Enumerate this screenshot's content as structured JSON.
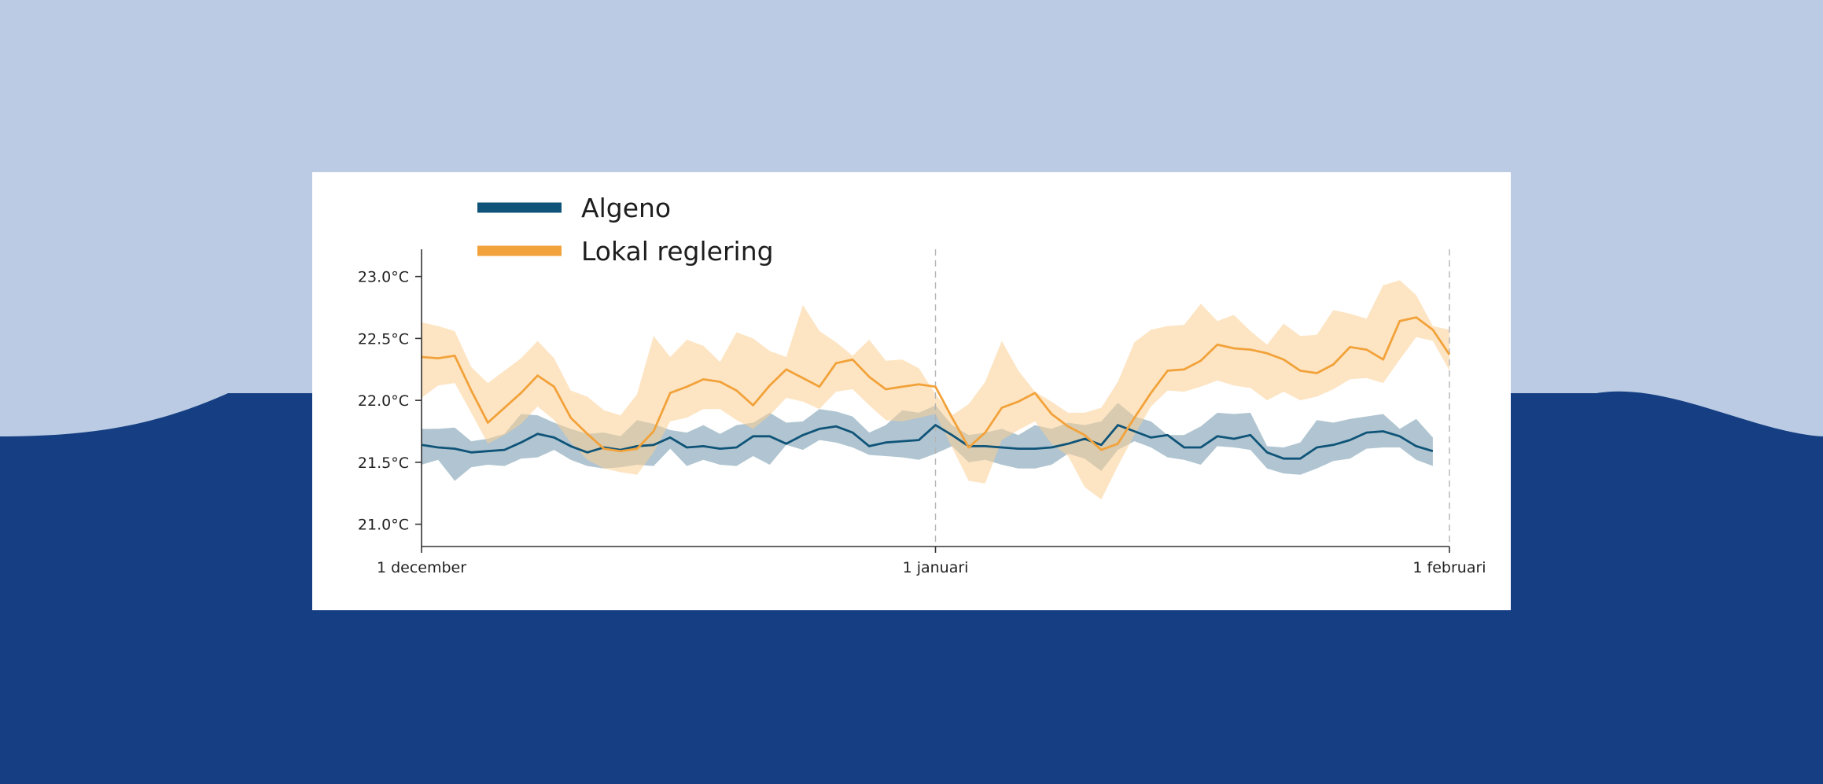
{
  "colors": {
    "background_light": "#bacbe3",
    "background_dark": "#153f82",
    "algeno": "#0f5478",
    "algeno_band": "#6f95ab",
    "lokal": "#f2a23a",
    "lokal_band": "#fbcf94"
  },
  "chart_data": {
    "type": "line",
    "title": "",
    "xlabel": "",
    "ylabel": "",
    "x_unit": "days since 1 december",
    "xlim": [
      0,
      62
    ],
    "ylim": [
      20.82,
      23.22
    ],
    "yticks": [
      {
        "value": 23.0,
        "label": "23.0°C"
      },
      {
        "value": 22.5,
        "label": "22.5°C"
      },
      {
        "value": 22.0,
        "label": "22.0°C"
      },
      {
        "value": 21.5,
        "label": "21.5°C"
      },
      {
        "value": 21.0,
        "label": "21.0°C"
      }
    ],
    "xticks": [
      {
        "value": 0,
        "label": "1 december"
      },
      {
        "value": 31,
        "label": "1 januari"
      },
      {
        "value": 62,
        "label": "1 februari"
      }
    ],
    "vlines": [
      31,
      62
    ],
    "legend_position": "top-left",
    "series": [
      {
        "name": "Algeno",
        "color": "#0f5478",
        "band_color": "#6f95ab",
        "values": [
          21.64,
          21.62,
          21.61,
          21.58,
          21.59,
          21.6,
          21.66,
          21.73,
          21.7,
          21.63,
          21.58,
          21.62,
          21.6,
          21.63,
          21.64,
          21.7,
          21.62,
          21.63,
          21.61,
          21.62,
          21.71,
          21.71,
          21.65,
          21.72,
          21.77,
          21.79,
          21.74,
          21.63,
          21.66,
          21.67,
          21.68,
          21.8,
          21.72,
          21.63,
          21.63,
          21.62,
          21.61,
          21.61,
          21.62,
          21.65,
          21.69,
          21.64,
          21.8,
          21.75,
          21.7,
          21.72,
          21.62,
          21.62,
          21.71,
          21.69,
          21.72,
          21.58,
          21.53,
          21.53,
          21.62,
          21.64,
          21.68,
          21.74,
          21.75,
          21.71,
          21.63,
          21.59
        ],
        "lower": [
          21.48,
          21.52,
          21.35,
          21.46,
          21.48,
          21.47,
          21.53,
          21.54,
          21.6,
          21.52,
          21.47,
          21.45,
          21.46,
          21.48,
          21.47,
          21.61,
          21.47,
          21.52,
          21.48,
          21.47,
          21.55,
          21.48,
          21.64,
          21.6,
          21.68,
          21.66,
          21.62,
          21.56,
          21.55,
          21.54,
          21.52,
          21.57,
          21.63,
          21.5,
          21.52,
          21.48,
          21.45,
          21.45,
          21.48,
          21.57,
          21.53,
          21.43,
          21.6,
          21.67,
          21.62,
          21.54,
          21.52,
          21.48,
          21.63,
          21.62,
          21.6,
          21.45,
          21.41,
          21.4,
          21.45,
          21.51,
          21.53,
          21.61,
          21.62,
          21.62,
          21.52,
          21.47
        ],
        "upper": [
          21.77,
          21.77,
          21.78,
          21.67,
          21.69,
          21.73,
          21.89,
          21.88,
          21.82,
          21.77,
          21.73,
          21.74,
          21.71,
          21.84,
          21.81,
          21.76,
          21.74,
          21.8,
          21.73,
          21.8,
          21.82,
          21.9,
          21.82,
          21.83,
          21.93,
          21.91,
          21.87,
          21.74,
          21.8,
          21.92,
          21.9,
          21.96,
          21.8,
          21.72,
          21.74,
          21.77,
          21.72,
          21.8,
          21.77,
          21.82,
          21.8,
          21.83,
          21.98,
          21.87,
          21.83,
          21.72,
          21.72,
          21.79,
          21.9,
          21.89,
          21.9,
          21.63,
          21.62,
          21.66,
          21.84,
          21.82,
          21.85,
          21.87,
          21.89,
          21.77,
          21.85,
          21.7
        ]
      },
      {
        "name": "Lokal reglering",
        "color": "#f2a23a",
        "band_color": "#fbcf94",
        "values": [
          22.35,
          22.34,
          22.36,
          22.08,
          21.82,
          21.94,
          22.06,
          22.2,
          22.11,
          21.86,
          21.73,
          21.61,
          21.59,
          21.61,
          21.75,
          22.06,
          22.11,
          22.17,
          22.15,
          22.08,
          21.96,
          22.12,
          22.25,
          22.18,
          22.11,
          22.3,
          22.33,
          22.19,
          22.09,
          22.11,
          22.13,
          22.11,
          21.86,
          21.62,
          21.74,
          21.94,
          21.99,
          22.06,
          21.89,
          21.79,
          21.72,
          21.6,
          21.65,
          21.86,
          22.06,
          22.24,
          22.25,
          22.32,
          22.45,
          22.42,
          22.41,
          22.38,
          22.33,
          22.24,
          22.22,
          22.29,
          22.43,
          22.41,
          22.33,
          22.64,
          22.67,
          22.57,
          22.37
        ],
        "lower": [
          22.02,
          22.12,
          22.14,
          21.9,
          21.65,
          21.72,
          21.81,
          21.95,
          21.84,
          21.66,
          21.52,
          21.45,
          21.42,
          21.4,
          21.58,
          21.83,
          21.86,
          21.93,
          21.93,
          21.84,
          21.77,
          21.88,
          22.02,
          21.99,
          21.93,
          22.07,
          22.09,
          21.96,
          21.84,
          21.83,
          21.86,
          21.89,
          21.62,
          21.35,
          21.33,
          21.68,
          21.76,
          21.83,
          21.65,
          21.55,
          21.3,
          21.2,
          21.47,
          21.72,
          21.95,
          22.08,
          22.07,
          22.11,
          22.16,
          22.12,
          22.1,
          22.0,
          22.07,
          22.0,
          22.03,
          22.09,
          22.17,
          22.18,
          22.14,
          22.33,
          22.51,
          22.48,
          22.24
        ],
        "upper": [
          22.63,
          22.6,
          22.56,
          22.27,
          22.14,
          22.24,
          22.34,
          22.48,
          22.34,
          22.08,
          22.03,
          21.92,
          21.88,
          22.05,
          22.52,
          22.35,
          22.49,
          22.44,
          22.31,
          22.55,
          22.5,
          22.4,
          22.35,
          22.77,
          22.56,
          22.47,
          22.36,
          22.49,
          22.32,
          22.33,
          22.26,
          22.05,
          21.88,
          21.97,
          22.15,
          22.48,
          22.24,
          22.07,
          21.99,
          21.9,
          21.9,
          21.94,
          22.15,
          22.47,
          22.57,
          22.6,
          22.61,
          22.78,
          22.64,
          22.69,
          22.56,
          22.45,
          22.62,
          22.52,
          22.53,
          22.73,
          22.7,
          22.66,
          22.93,
          22.97,
          22.85,
          22.6,
          22.57
        ]
      }
    ]
  }
}
